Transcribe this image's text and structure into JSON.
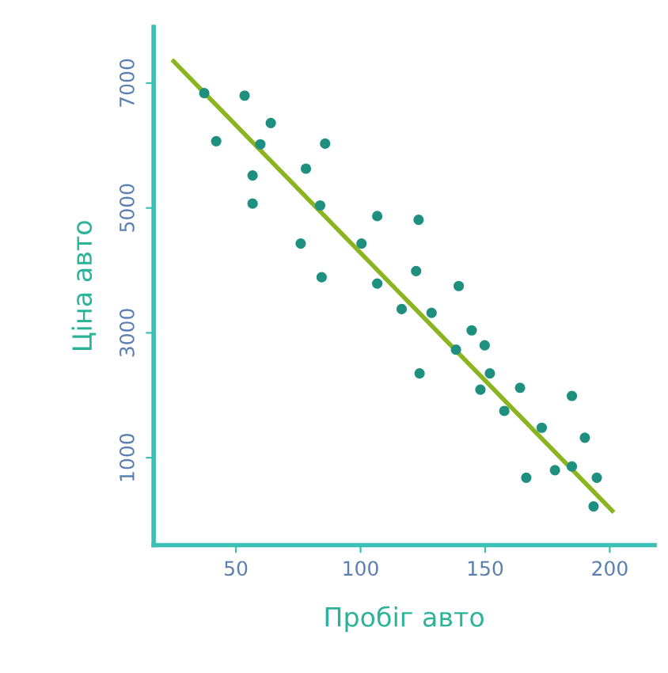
{
  "chart_data": {
    "type": "scatter",
    "xlabel": "Пробіг авто",
    "ylabel": "Ціна авто",
    "xlim": [
      17,
      218
    ],
    "ylim": [
      -400,
      7900
    ],
    "xticks": [
      50,
      100,
      150,
      200
    ],
    "yticks": [
      1000,
      3000,
      5000,
      7000
    ],
    "grid": false,
    "series": [
      {
        "marker": "circle",
        "color": "#1f8f7f",
        "x": [
          37.3,
          53.5,
          42.1,
          64,
          59.8,
          56.7,
          56.7,
          85.8,
          78.1,
          83.8,
          76,
          84.4,
          100.4,
          106.7,
          106.7,
          123.3,
          122.3,
          116.5,
          128.5,
          123.7,
          139.4,
          138.3,
          144.6,
          149.8,
          151.9,
          148.1,
          157.7,
          164,
          172.7,
          166.5,
          178,
          184.8,
          184.8,
          190,
          194.8,
          193.5
        ],
        "values": [
          6840,
          6800,
          6070,
          6360,
          6020,
          5520,
          5070,
          6030,
          5630,
          5040,
          4430,
          3890,
          4430,
          4870,
          3790,
          4810,
          3990,
          3380,
          3320,
          2350,
          3750,
          2730,
          3040,
          2800,
          2350,
          2090,
          1750,
          2120,
          1480,
          680,
          800,
          1990,
          860,
          1320,
          680,
          220
        ]
      },
      {
        "type": "line",
        "marker": "none",
        "color": "#8ab520",
        "x": [
          25,
          201
        ],
        "values": [
          7350,
          150
        ]
      }
    ]
  }
}
